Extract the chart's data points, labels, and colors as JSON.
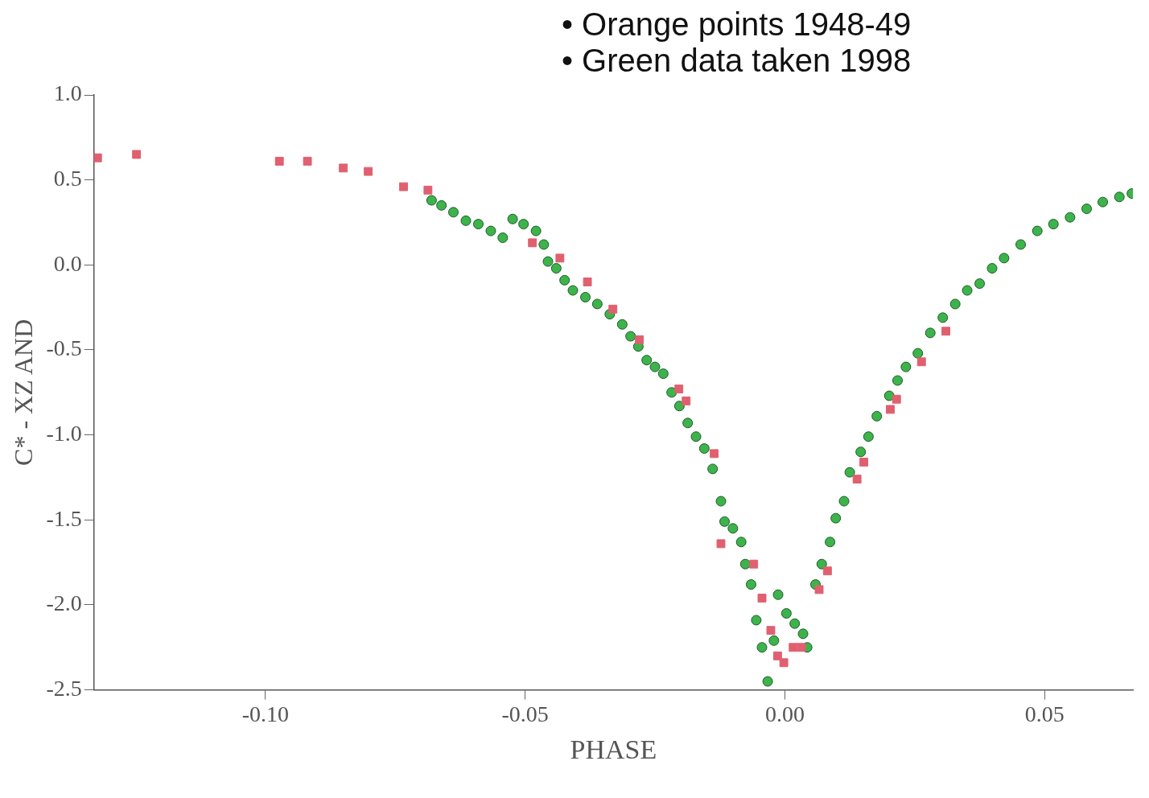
{
  "chart_data": {
    "type": "scatter",
    "xlabel": "PHASE",
    "ylabel": "C* - XZ AND",
    "annotations": [
      "• Orange points 1948-49",
      "• Green data taken 1998"
    ],
    "xlim": [
      -0.133,
      0.067
    ],
    "ylim": [
      -2.5,
      1.0
    ],
    "xticks": [
      {
        "value": -0.1,
        "label": "-0.10"
      },
      {
        "value": -0.05,
        "label": "-0.05"
      },
      {
        "value": 0,
        "label": "0.00"
      },
      {
        "value": 0.05,
        "label": "0.05"
      }
    ],
    "yticks": [
      {
        "value": 1,
        "label": "1.0"
      },
      {
        "value": 0.5,
        "label": "0.5"
      },
      {
        "value": 0,
        "label": "0.0"
      },
      {
        "value": -0.5,
        "label": "-0.5"
      },
      {
        "value": -1,
        "label": "-1.0"
      },
      {
        "value": -1.5,
        "label": "-1.5"
      },
      {
        "value": -2,
        "label": "-2.0"
      },
      {
        "value": -2.5,
        "label": "-2.5"
      }
    ],
    "grid": false,
    "legend": false,
    "series": [
      {
        "color": "#e06070",
        "marker": "square",
        "x": [
          -0.1323,
          -0.1248,
          -0.0973,
          -0.0919,
          -0.085,
          -0.0802,
          -0.0734,
          -0.0687,
          -0.0486,
          -0.0433,
          -0.038,
          -0.0331,
          -0.028,
          -0.0204,
          -0.019,
          -0.0136,
          -0.0123,
          -0.006,
          -0.0044,
          -0.0027,
          -0.0014,
          -0.0002,
          0.0016,
          0.0032,
          0.0066,
          0.0082,
          0.0139,
          0.0152,
          0.0203,
          0.0215,
          0.0263,
          0.031
        ],
        "values": [
          0.63,
          0.65,
          0.61,
          0.61,
          0.57,
          0.55,
          0.46,
          0.44,
          0.13,
          0.04,
          -0.1,
          -0.26,
          -0.44,
          -0.73,
          -0.8,
          -1.11,
          -1.64,
          -1.76,
          -1.96,
          -2.15,
          -2.3,
          -2.34,
          -2.25,
          -2.25,
          -1.91,
          -1.8,
          -1.26,
          -1.16,
          -0.85,
          -0.79,
          -0.57,
          -0.39
        ]
      },
      {
        "color": "#3cb44b",
        "marker": "circle",
        "x": [
          -0.068,
          -0.0661,
          -0.0638,
          -0.0614,
          -0.059,
          -0.0566,
          -0.0543,
          -0.0524,
          -0.0503,
          -0.0479,
          -0.0464,
          -0.0456,
          -0.044,
          -0.0424,
          -0.0408,
          -0.0384,
          -0.0361,
          -0.0337,
          -0.0313,
          -0.0297,
          -0.0282,
          -0.0266,
          -0.025,
          -0.0234,
          -0.0218,
          -0.0203,
          -0.0187,
          -0.0171,
          -0.0155,
          -0.0139,
          -0.0123,
          -0.0116,
          -0.01,
          -0.0084,
          -0.0076,
          -0.0065,
          -0.0055,
          -0.0044,
          -0.0033,
          -0.0021,
          -0.0013,
          0.0003,
          0.0019,
          0.0035,
          0.0043,
          0.0059,
          0.0071,
          0.0087,
          0.0098,
          0.0114,
          0.0125,
          0.0146,
          0.0161,
          0.0177,
          0.0201,
          0.0217,
          0.0233,
          0.0256,
          0.028,
          0.0304,
          0.0328,
          0.0351,
          0.0375,
          0.0399,
          0.0422,
          0.0454,
          0.0486,
          0.0517,
          0.0549,
          0.0581,
          0.0612,
          0.0644,
          0.0668
        ],
        "values": [
          0.38,
          0.35,
          0.31,
          0.26,
          0.24,
          0.2,
          0.16,
          0.27,
          0.24,
          0.2,
          0.12,
          0.02,
          -0.02,
          -0.09,
          -0.15,
          -0.19,
          -0.23,
          -0.29,
          -0.35,
          -0.42,
          -0.48,
          -0.56,
          -0.6,
          -0.64,
          -0.75,
          -0.83,
          -0.93,
          -1.01,
          -1.08,
          -1.2,
          -1.39,
          -1.51,
          -1.55,
          -1.63,
          -1.76,
          -1.88,
          -2.09,
          -2.25,
          -2.45,
          -2.21,
          -1.94,
          -2.05,
          -2.11,
          -2.17,
          -2.25,
          -1.88,
          -1.76,
          -1.63,
          -1.49,
          -1.39,
          -1.22,
          -1.1,
          -1.01,
          -0.89,
          -0.77,
          -0.68,
          -0.6,
          -0.52,
          -0.4,
          -0.31,
          -0.23,
          -0.15,
          -0.11,
          -0.02,
          0.04,
          0.12,
          0.2,
          0.24,
          0.28,
          0.33,
          0.37,
          0.4,
          0.42
        ]
      }
    ]
  }
}
